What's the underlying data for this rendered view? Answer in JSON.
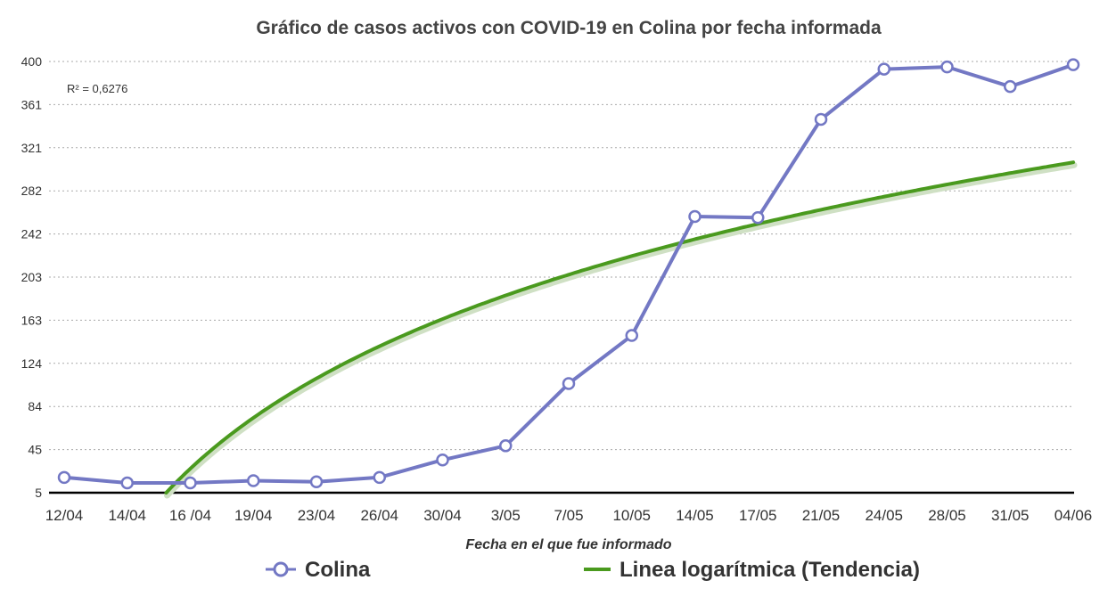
{
  "chart_data": {
    "type": "line",
    "title": "Gráfico de casos activos con COVID-19 en Colina por fecha informada",
    "xlabel": "Fecha en el que fue informado",
    "ylabel": "",
    "categories": [
      "12/04",
      "14/04",
      "16 /04",
      "19/04",
      "23/04",
      "26/04",
      "30/04",
      "3/05",
      "7/05",
      "10/05",
      "14/05",
      "17/05",
      "21/05",
      "24/05",
      "28/05",
      "31/05",
      "04/06"
    ],
    "y_ticks": [
      "5",
      "45",
      "84",
      "124",
      "163",
      "203",
      "242",
      "282",
      "321",
      "361",
      "400"
    ],
    "ylim": [
      5,
      400
    ],
    "grid": true,
    "legend_position": "bottom",
    "annotation": "R² = 0,6276",
    "series": [
      {
        "name": "Colina",
        "color": "#7378C4",
        "values": [
          19,
          14,
          14,
          16,
          15,
          19,
          35,
          48,
          105,
          149,
          258,
          257,
          347,
          393,
          395,
          377,
          397
        ]
      },
      {
        "name": "Linea logarítmica (Tendencia)",
        "color": "#4A9A1E",
        "trend": "logarithmic"
      }
    ]
  }
}
